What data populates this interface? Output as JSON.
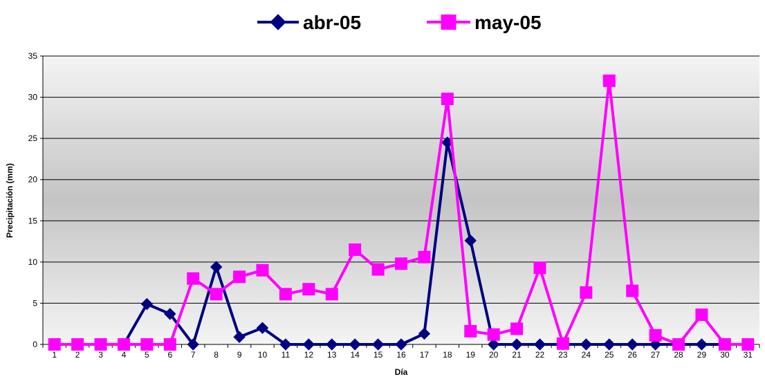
{
  "chart_data": {
    "type": "line",
    "title": "",
    "xlabel": "Día",
    "ylabel": "Precipitación (mm)",
    "ylim": [
      0,
      35
    ],
    "yticks": [
      0,
      5,
      10,
      15,
      20,
      25,
      30,
      35
    ],
    "grid": "horizontal",
    "legend": "top-center",
    "categories": [
      "1",
      "2",
      "3",
      "4",
      "5",
      "6",
      "7",
      "8",
      "9",
      "10",
      "11",
      "12",
      "13",
      "14",
      "15",
      "16",
      "17",
      "18",
      "19",
      "20",
      "21",
      "22",
      "23",
      "24",
      "25",
      "26",
      "27",
      "28",
      "29",
      "30",
      "31"
    ],
    "series": [
      {
        "name": "abr-05",
        "color": "#000080",
        "marker": "diamond",
        "values": [
          0,
          0,
          0,
          0,
          4.9,
          3.7,
          0,
          9.4,
          0.9,
          2.0,
          0,
          0,
          0,
          0,
          0,
          0,
          1.3,
          24.5,
          12.6,
          0,
          0,
          0,
          0,
          0,
          0,
          0,
          0,
          0,
          0,
          0,
          0
        ]
      },
      {
        "name": "may-05",
        "color": "#FF00FF",
        "marker": "square",
        "values": [
          0,
          0,
          0,
          0,
          0,
          0,
          8.0,
          6.1,
          8.2,
          9.0,
          6.1,
          6.7,
          6.1,
          11.5,
          9.1,
          9.8,
          10.6,
          29.8,
          1.6,
          1.2,
          1.9,
          9.3,
          0.1,
          6.3,
          32.0,
          6.5,
          1.1,
          0,
          3.6,
          0,
          0
        ]
      }
    ]
  }
}
